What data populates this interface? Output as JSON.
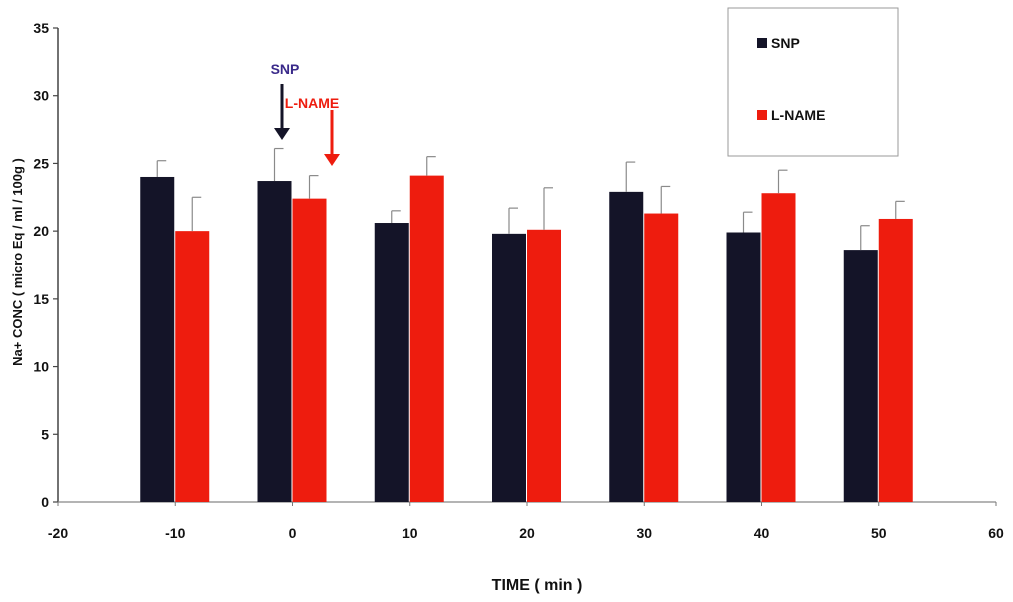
{
  "chart_data": {
    "type": "bar",
    "xlabel": "TIME ( min )",
    "ylabel": "Na+ CONC  ( micro Eq / ml / 100g )",
    "xlim": [
      -20,
      60
    ],
    "ylim": [
      0,
      35
    ],
    "x_ticks": [
      "-20",
      "-10",
      "0",
      "10",
      "20",
      "30",
      "40",
      "50",
      "60"
    ],
    "y_ticks": [
      "0",
      "5",
      "10",
      "15",
      "20",
      "25",
      "30",
      "35"
    ],
    "categories": [
      -10,
      0,
      10,
      20,
      30,
      40,
      50
    ],
    "series": [
      {
        "name": "SNP",
        "color": "#141428",
        "values": [
          24.0,
          23.7,
          20.6,
          19.8,
          22.9,
          19.9,
          18.6
        ],
        "errors": [
          1.2,
          2.4,
          0.9,
          1.9,
          2.2,
          1.5,
          1.8
        ]
      },
      {
        "name": "L-NAME",
        "color": "#ee1c0e",
        "values": [
          20.0,
          22.4,
          24.1,
          20.1,
          21.3,
          22.8,
          20.9
        ],
        "errors": [
          2.5,
          1.7,
          1.4,
          3.1,
          2.0,
          1.7,
          1.3
        ]
      }
    ],
    "annotations": [
      {
        "text": "SNP",
        "x": 0,
        "text_color": "#3a2a8a",
        "arrow_color": "#141428"
      },
      {
        "text": "L-NAME",
        "x": 3,
        "text_color": "#ee1c0e",
        "arrow_color": "#ee1c0e"
      }
    ],
    "grid": false,
    "legend_position": "top-right"
  }
}
